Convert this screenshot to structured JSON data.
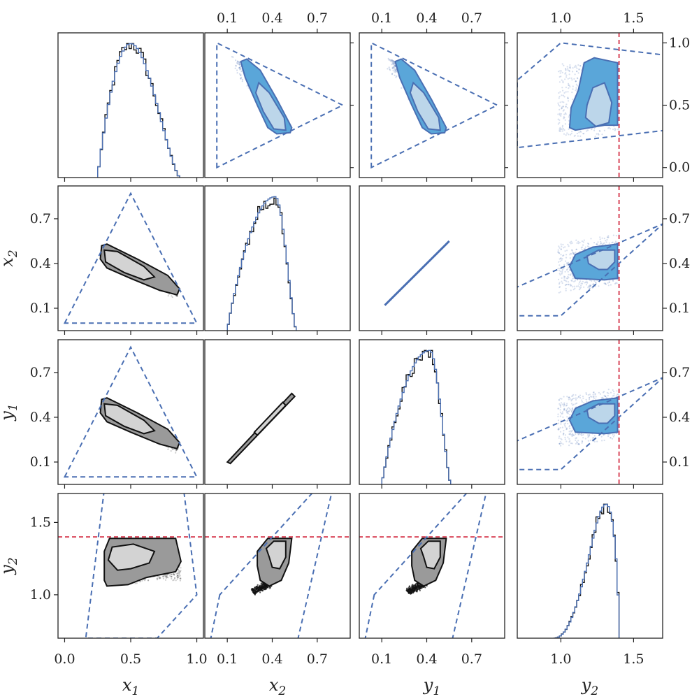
{
  "colors": {
    "lower_fill_outer": "#9a9a9a",
    "lower_fill_inner": "#d3d3d3",
    "lower_line": "#111111",
    "upper_fill_outer": "#5aa6d9",
    "upper_fill_inner": "#bcd6ea",
    "upper_line": "#4a6fb3",
    "boundary": "#4a6fb3",
    "threshold": "#d9485b",
    "hist_black": "#111111",
    "hist_blue": "#4a6fb3"
  },
  "chart_data": {
    "type": "corner",
    "variables": [
      {
        "key": "x1",
        "label": "x",
        "sub": "1",
        "range": [
          -0.05,
          1.05
        ],
        "ticks": [
          0.0,
          0.5,
          1.0
        ],
        "tick_labels": [
          "0.0",
          "0.5",
          "1.0"
        ]
      },
      {
        "key": "x2",
        "label": "x",
        "sub": "2",
        "range": [
          -0.05,
          0.92
        ],
        "ticks": [
          0.1,
          0.4,
          0.7
        ],
        "tick_labels": [
          "0.1",
          "0.4",
          "0.7"
        ]
      },
      {
        "key": "y1",
        "label": "y",
        "sub": "1",
        "range": [
          -0.05,
          0.92
        ],
        "ticks": [
          0.1,
          0.4,
          0.7
        ],
        "tick_labels": [
          "0.1",
          "0.4",
          "0.7"
        ]
      },
      {
        "key": "y2",
        "label": "y",
        "sub": "2",
        "range": [
          0.7,
          1.7
        ],
        "ticks": [
          1.0,
          1.5
        ],
        "tick_labels": [
          "1.0",
          "1.5"
        ]
      }
    ],
    "top_axis_ticks": [
      {
        "ticks": [
          0.1,
          0.4,
          0.7
        ],
        "tick_labels": [
          "0.1",
          "0.4",
          "0.7"
        ]
      },
      {
        "ticks": [
          0.1,
          0.4,
          0.7
        ],
        "tick_labels": [
          "0.1",
          "0.4",
          "0.7"
        ]
      },
      {
        "ticks": [
          1.0,
          1.5
        ],
        "tick_labels": [
          "1.0",
          "1.5"
        ]
      }
    ],
    "right_axis_ticks": [
      {
        "ticks": [
          0.0,
          0.5,
          1.0
        ],
        "tick_labels": [
          "0.0",
          "0.5",
          "1.0"
        ]
      },
      {
        "ticks": [
          0.1,
          0.4,
          0.7
        ],
        "tick_labels": [
          "0.1",
          "0.4",
          "0.7"
        ]
      },
      {
        "ticks": [
          0.1,
          0.4,
          0.7
        ],
        "tick_labels": [
          "0.1",
          "0.4",
          "0.7"
        ]
      }
    ],
    "y2_threshold": 1.4,
    "constraint_polygons": {
      "x1_x2": [
        [
          0.0,
          0.0
        ],
        [
          0.5,
          0.87
        ],
        [
          1.0,
          0.0
        ]
      ],
      "x2_x1": [
        [
          0.03,
          0.0
        ],
        [
          0.03,
          1.0
        ],
        [
          0.87,
          0.5
        ]
      ],
      "x2_y2": [
        [
          0.05,
          1.0
        ],
        [
          -0.03,
          0.6
        ],
        [
          0.55,
          0.6
        ],
        [
          0.84,
          1.9
        ]
      ],
      "x1_y2": [
        [
          0.33,
          1.95
        ],
        [
          0.16,
          0.7
        ],
        [
          0.7,
          0.7
        ],
        [
          1.0,
          1.0
        ],
        [
          0.87,
          1.95
        ]
      ]
    },
    "marginal_histograms": {
      "x1": {
        "range": [
          0.25,
          0.87
        ],
        "peak": 0.5,
        "ylim": [
          0,
          1.08
        ]
      },
      "x2": {
        "range": [
          0.1,
          0.56
        ],
        "peak": 0.42,
        "ylim": [
          0,
          1.08
        ]
      },
      "y1": {
        "range": [
          0.1,
          0.56
        ],
        "peak": 0.42,
        "ylim": [
          0,
          1.08
        ]
      },
      "y2": {
        "range": [
          0.95,
          1.4
        ],
        "peak": 1.31,
        "ylim": [
          0,
          1.08
        ]
      }
    },
    "density_regions": {
      "x1_x2": {
        "outer": [
          [
            0.28,
            0.52
          ],
          [
            0.32,
            0.53
          ],
          [
            0.55,
            0.43
          ],
          [
            0.78,
            0.32
          ],
          [
            0.87,
            0.23
          ],
          [
            0.85,
            0.19
          ],
          [
            0.72,
            0.22
          ],
          [
            0.5,
            0.3
          ],
          [
            0.32,
            0.37
          ],
          [
            0.27,
            0.43
          ]
        ],
        "inner": [
          [
            0.3,
            0.49
          ],
          [
            0.4,
            0.48
          ],
          [
            0.6,
            0.38
          ],
          [
            0.68,
            0.31
          ],
          [
            0.6,
            0.29
          ],
          [
            0.45,
            0.34
          ],
          [
            0.31,
            0.41
          ]
        ]
      },
      "x1_y1": {
        "outer": [
          [
            0.28,
            0.52
          ],
          [
            0.32,
            0.53
          ],
          [
            0.55,
            0.43
          ],
          [
            0.78,
            0.32
          ],
          [
            0.87,
            0.23
          ],
          [
            0.85,
            0.19
          ],
          [
            0.72,
            0.22
          ],
          [
            0.5,
            0.3
          ],
          [
            0.32,
            0.37
          ],
          [
            0.27,
            0.43
          ]
        ],
        "inner": [
          [
            0.3,
            0.49
          ],
          [
            0.4,
            0.48
          ],
          [
            0.6,
            0.38
          ],
          [
            0.68,
            0.31
          ],
          [
            0.6,
            0.29
          ],
          [
            0.45,
            0.34
          ],
          [
            0.31,
            0.41
          ]
        ]
      },
      "x1_y2": {
        "outer": [
          [
            0.3,
            1.1
          ],
          [
            0.3,
            1.3
          ],
          [
            0.34,
            1.39
          ],
          [
            0.84,
            1.39
          ],
          [
            0.88,
            1.23
          ],
          [
            0.84,
            1.16
          ],
          [
            0.62,
            1.12
          ],
          [
            0.48,
            1.07
          ],
          [
            0.32,
            1.06
          ]
        ],
        "inner": [
          [
            0.33,
            1.24
          ],
          [
            0.36,
            1.33
          ],
          [
            0.52,
            1.35
          ],
          [
            0.68,
            1.3
          ],
          [
            0.64,
            1.22
          ],
          [
            0.5,
            1.18
          ],
          [
            0.4,
            1.17
          ]
        ]
      },
      "x2_y2": {
        "outer": [
          [
            0.3,
            1.3
          ],
          [
            0.37,
            1.39
          ],
          [
            0.53,
            1.39
          ],
          [
            0.51,
            1.22
          ],
          [
            0.46,
            1.1
          ],
          [
            0.38,
            1.06
          ],
          [
            0.32,
            1.1
          ],
          [
            0.3,
            1.2
          ]
        ],
        "inner": [
          [
            0.36,
            1.32
          ],
          [
            0.41,
            1.37
          ],
          [
            0.49,
            1.37
          ],
          [
            0.49,
            1.26
          ],
          [
            0.45,
            1.18
          ],
          [
            0.4,
            1.19
          ],
          [
            0.38,
            1.26
          ]
        ]
      },
      "y1_y2": {
        "outer": [
          [
            0.3,
            1.3
          ],
          [
            0.37,
            1.39
          ],
          [
            0.53,
            1.39
          ],
          [
            0.51,
            1.22
          ],
          [
            0.46,
            1.1
          ],
          [
            0.38,
            1.06
          ],
          [
            0.32,
            1.1
          ],
          [
            0.3,
            1.2
          ]
        ],
        "inner": [
          [
            0.36,
            1.32
          ],
          [
            0.41,
            1.37
          ],
          [
            0.49,
            1.37
          ],
          [
            0.49,
            1.26
          ],
          [
            0.45,
            1.18
          ],
          [
            0.4,
            1.19
          ],
          [
            0.38,
            1.26
          ]
        ]
      },
      "x2_y1": {
        "outer": [
          [
            0.1,
            0.1
          ],
          [
            0.55,
            0.55
          ]
        ],
        "inner": [
          [
            0.3,
            0.3
          ],
          [
            0.48,
            0.48
          ]
        ]
      }
    }
  }
}
